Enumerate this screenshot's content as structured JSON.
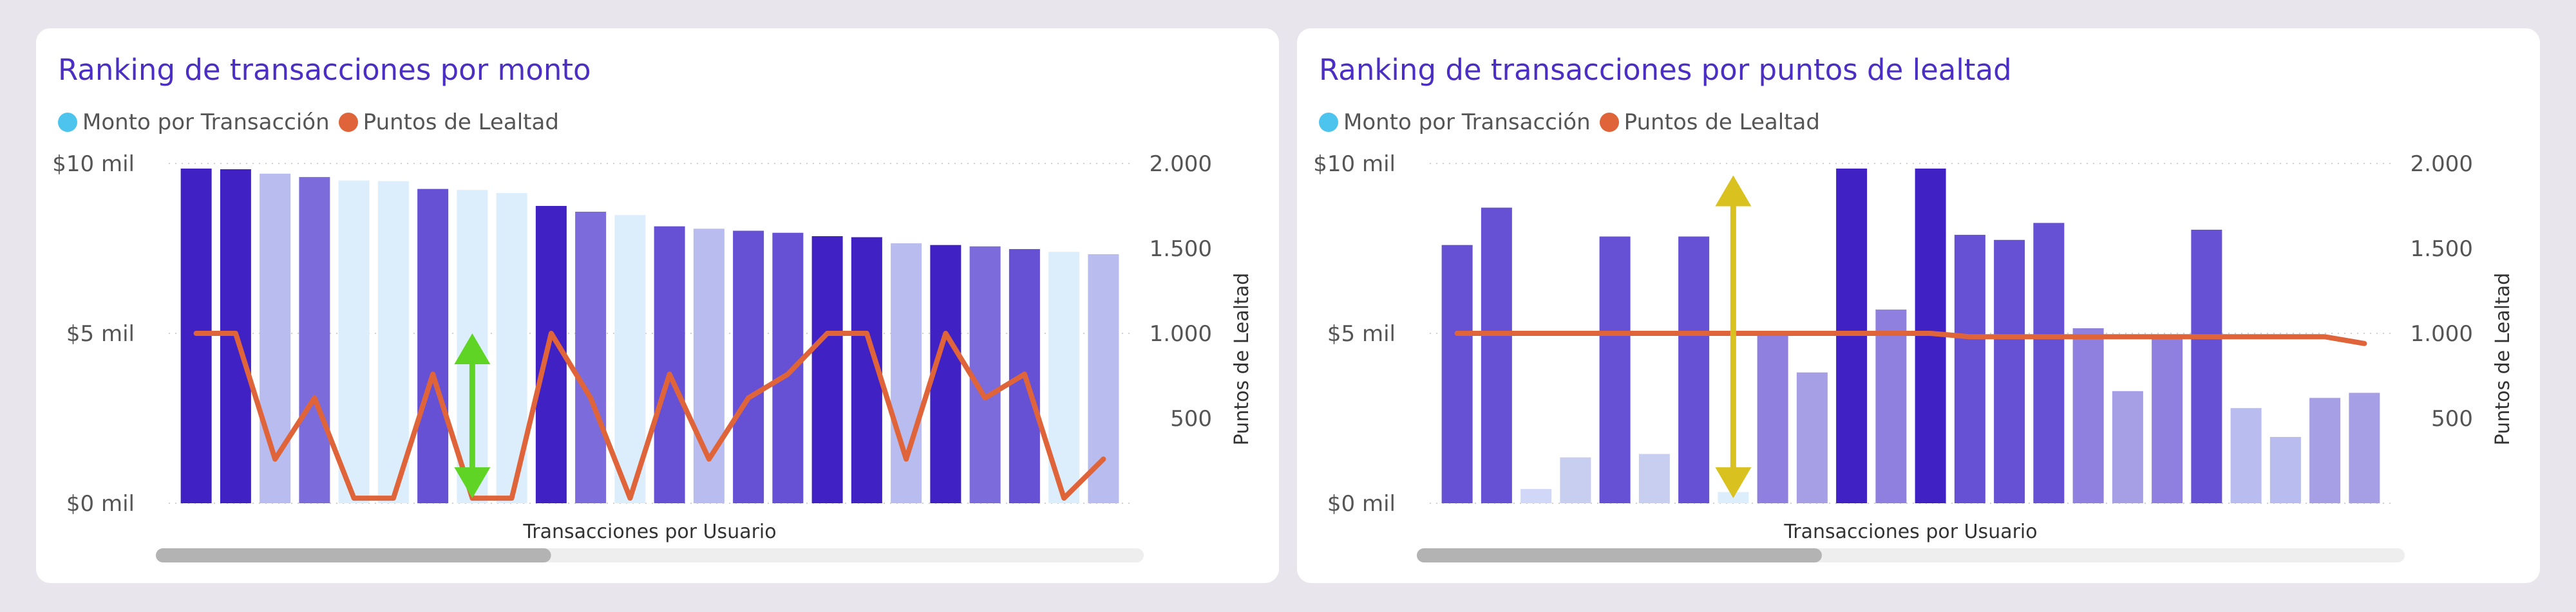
{
  "colors": {
    "page_bg": "#e8e6ec",
    "title": "#4b2fc4",
    "legend_monto": "#4cc4ee",
    "legend_puntos": "#e0643a",
    "line": "#e0643a",
    "arrow_left": "#5fd424",
    "arrow_right": "#d9c21f",
    "scroll_track": "#eeeeee",
    "scroll_thumb": "#b3b3b3"
  },
  "chart_data": [
    {
      "type": "bar",
      "title": "Ranking de transacciones por monto",
      "legend": [
        "Monto por Transacción",
        "Puntos de Lealtad"
      ],
      "legend_position": "top-left",
      "xlabel": "Transacciones por Usuario",
      "ylabel": "",
      "y2label": "Puntos de Lealtad",
      "ylim": [
        0,
        10000
      ],
      "y2lim": [
        0,
        2000
      ],
      "yticks": [
        {
          "value": 0,
          "label": "$0 mil"
        },
        {
          "value": 5000,
          "label": "$5 mil"
        },
        {
          "value": 10000,
          "label": "$10 mil"
        }
      ],
      "y2ticks": [
        {
          "value": 500,
          "label": "500"
        },
        {
          "value": 1000,
          "label": "1.000"
        },
        {
          "value": 1500,
          "label": "1.500"
        },
        {
          "value": 2000,
          "label": "2.000"
        }
      ],
      "grid": true,
      "series": [
        {
          "name": "Monto por Transacción",
          "axis": "left",
          "values": [
            9850,
            9830,
            9700,
            9600,
            9500,
            9480,
            9250,
            9220,
            9130,
            8750,
            8580,
            8480,
            8150,
            8080,
            8020,
            7960,
            7860,
            7830,
            7650,
            7600,
            7560,
            7480,
            7400,
            7330
          ],
          "colors": [
            "#4021c4",
            "#4021c4",
            "#b8bcee",
            "#7b6bdb",
            "#dceefc",
            "#dceefc",
            "#6651d5",
            "#dceefc",
            "#dceefc",
            "#4021c4",
            "#7b6bdb",
            "#dceefc",
            "#6651d5",
            "#b8bcee",
            "#6651d5",
            "#6651d5",
            "#4021c4",
            "#4021c4",
            "#b8bcee",
            "#4021c4",
            "#7b6bdb",
            "#6651d5",
            "#dceefc",
            "#b8bcee"
          ]
        },
        {
          "name": "Puntos de Lealtad",
          "axis": "right",
          "type": "line",
          "values": [
            1000,
            1000,
            260,
            620,
            30,
            30,
            760,
            30,
            30,
            1000,
            620,
            30,
            760,
            260,
            620,
            760,
            1000,
            1000,
            260,
            1000,
            620,
            760,
            30,
            260
          ]
        }
      ],
      "annotation": {
        "type": "double-arrow",
        "index": 7,
        "from_y2": 30,
        "to_y2": 1000,
        "color": "#5fd424"
      },
      "scrollbar": {
        "thumb_fraction": 0.4
      }
    },
    {
      "type": "bar",
      "title": "Ranking de transacciones por puntos de lealtad",
      "legend": [
        "Monto por Transacción",
        "Puntos de Lealtad"
      ],
      "legend_position": "top-left",
      "xlabel": "Transacciones por Usuario",
      "ylabel": "",
      "y2label": "Puntos de Lealtad",
      "ylim": [
        0,
        10000
      ],
      "y2lim": [
        0,
        2000
      ],
      "yticks": [
        {
          "value": 0,
          "label": "$0 mil"
        },
        {
          "value": 5000,
          "label": "$5 mil"
        },
        {
          "value": 10000,
          "label": "$10 mil"
        }
      ],
      "y2ticks": [
        {
          "value": 500,
          "label": "500"
        },
        {
          "value": 1000,
          "label": "1.000"
        },
        {
          "value": 1500,
          "label": "1.500"
        },
        {
          "value": 2000,
          "label": "2.000"
        }
      ],
      "grid": true,
      "series": [
        {
          "name": "Monto por Transacción",
          "axis": "left",
          "values": [
            7600,
            8700,
            420,
            1350,
            7850,
            1450,
            7850,
            330,
            5000,
            3850,
            9850,
            5700,
            9850,
            7900,
            7750,
            8250,
            5150,
            3300,
            4900,
            8050,
            2800,
            1950,
            3100,
            3250
          ],
          "colors": [
            "#6651d5",
            "#6651d5",
            "#d1d8f7",
            "#c8ceef",
            "#6651d5",
            "#c8ceef",
            "#6651d5",
            "#dceefc",
            "#8f80df",
            "#a69fe6",
            "#4021c4",
            "#8f80df",
            "#4021c4",
            "#6651d5",
            "#6651d5",
            "#6651d5",
            "#8f80df",
            "#a69fe6",
            "#8f80df",
            "#6651d5",
            "#b8bcee",
            "#b8bcee",
            "#a69fe6",
            "#a69fe6"
          ]
        },
        {
          "name": "Puntos de Lealtad",
          "axis": "right",
          "type": "line",
          "values": [
            1000,
            1000,
            1000,
            1000,
            1000,
            1000,
            1000,
            1000,
            1000,
            1000,
            1000,
            1000,
            1000,
            980,
            980,
            980,
            980,
            980,
            980,
            980,
            980,
            980,
            980,
            940
          ]
        }
      ],
      "annotation": {
        "type": "double-arrow",
        "index": 7,
        "from_y2": 30,
        "to_y2": 1930,
        "color": "#d9c21f"
      },
      "scrollbar": {
        "thumb_fraction": 0.41
      }
    }
  ]
}
